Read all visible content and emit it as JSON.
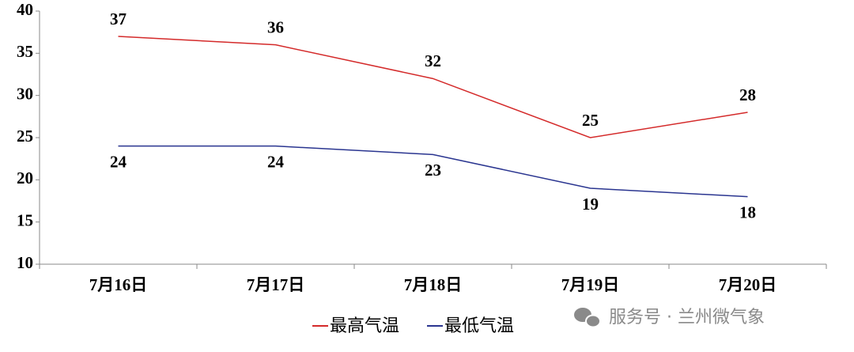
{
  "chart_data": {
    "type": "line",
    "categories": [
      "7月16日",
      "7月17日",
      "7月18日",
      "7月19日",
      "7月20日"
    ],
    "series": [
      {
        "name": "最高气温",
        "color": "#d42a2a",
        "values": [
          37,
          36,
          32,
          25,
          28
        ]
      },
      {
        "name": "最低气温",
        "color": "#2a3590",
        "values": [
          24,
          24,
          23,
          19,
          18
        ]
      }
    ],
    "ylim": [
      10,
      40
    ],
    "yticks": [
      10,
      15,
      20,
      25,
      30,
      35,
      40
    ],
    "legend": "bottom",
    "watermark": "服务号 · 兰州微气象"
  }
}
